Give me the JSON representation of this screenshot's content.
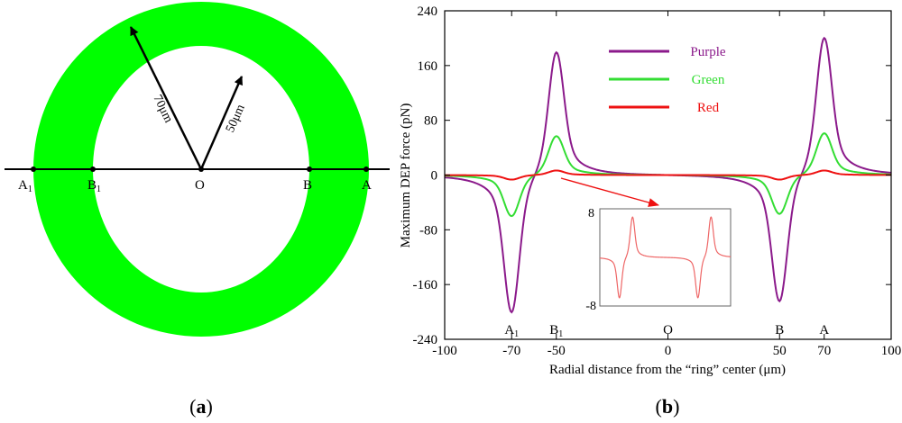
{
  "panel_a": {
    "label_open": "(",
    "label_letter": "a",
    "label_close": ")",
    "outer_radius_label": "70μm",
    "inner_radius_label": "50μm",
    "points": [
      {
        "key": "A1",
        "base": "A",
        "sub": "1"
      },
      {
        "key": "B1",
        "base": "B",
        "sub": "1"
      },
      {
        "key": "O",
        "base": "O",
        "sub": ""
      },
      {
        "key": "B",
        "base": "B",
        "sub": ""
      },
      {
        "key": "A",
        "base": "A",
        "sub": ""
      }
    ],
    "ring_color": "#00ff00"
  },
  "panel_b": {
    "label_open": "(",
    "label_letter": "b",
    "label_close": ")"
  },
  "chart_data": {
    "type": "line",
    "xlabel": "Radial distance from the “ring” center (μm)",
    "ylabel": "Maximum  DEP force (pN)",
    "xlim": [
      -100,
      100
    ],
    "ylim": [
      -240,
      240
    ],
    "x_ticks": [
      -100,
      -70,
      -50,
      0,
      50,
      70,
      100
    ],
    "x_tick_labels": [
      "-100",
      "-70",
      "-50",
      "0",
      "50",
      "70",
      "100"
    ],
    "y_ticks": [
      240,
      160,
      80,
      0,
      -80,
      -160,
      -240
    ],
    "y_tick_labels": [
      "240",
      "160",
      "80",
      "0",
      "-80",
      "-160",
      "-240"
    ],
    "point_labels": [
      {
        "x": -70,
        "base": "A",
        "sub": "1"
      },
      {
        "x": -50,
        "base": "B",
        "sub": "1"
      },
      {
        "x": 0,
        "base": "O",
        "sub": ""
      },
      {
        "x": 50,
        "base": "B",
        "sub": ""
      },
      {
        "x": 70,
        "base": "A",
        "sub": ""
      }
    ],
    "legend_position": "top-center",
    "series": [
      {
        "name": "Purple",
        "color": "#8b1a8b",
        "label_color": "#8b1a8b",
        "peak_pos": 190,
        "peak_neg": -210,
        "peak_pos_r": 210,
        "peak_neg_r": -195
      },
      {
        "name": "Green",
        "color": "#33dd33",
        "label_color": "#33dd33",
        "peak_pos": 60,
        "peak_neg": -63,
        "peak_pos_r": 64,
        "peak_neg_r": -60
      },
      {
        "name": "Red",
        "color": "#ee1111",
        "label_color": "#ee1111",
        "peak_pos": 7,
        "peak_neg": -7,
        "peak_pos_r": 7,
        "peak_neg_r": -7
      }
    ],
    "inset": {
      "ylim": [
        -8,
        8
      ],
      "y_tick_labels": [
        "8",
        "-8"
      ],
      "series": "Red",
      "color": "#ee6666"
    }
  }
}
